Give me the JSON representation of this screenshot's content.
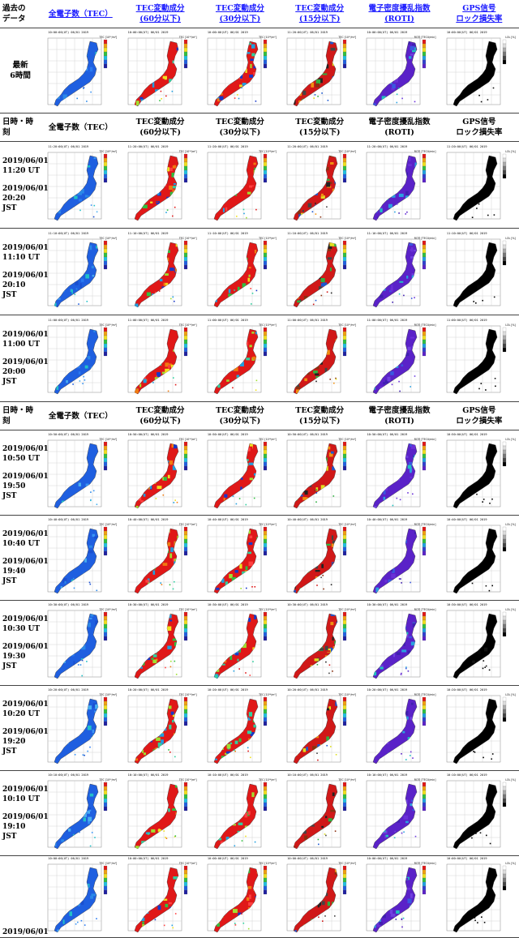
{
  "header": {
    "past_data": "過去の\nデータ",
    "columns": [
      {
        "label": "全電子数（TEC）",
        "link": true
      },
      {
        "label": "TEC変動成分\n(60分以下)",
        "link": true
      },
      {
        "label": "TEC変動成分\n(30分以下)",
        "link": true
      },
      {
        "label": "TEC変動成分\n(15分以下)",
        "link": true
      },
      {
        "label": "電子密度擾乱指数\n(ROTI)",
        "link": true
      },
      {
        "label": "GPS信号\nロック損失率",
        "link": true
      }
    ]
  },
  "latest_label": "最新\n6時間",
  "subheader": {
    "datetime_label": "日時・時\n刻",
    "columns": [
      "全電子数（TEC）",
      "TEC変動成分\n(60分以下)",
      "TEC変動成分\n(30分以下)",
      "TEC変動成分\n(15分以下)",
      "電子密度擾乱指数\n(ROTI)",
      "GPS信号\nロック損失率"
    ]
  },
  "units": [
    "TEC [10¹⁶/m²]",
    "TEC [10¹⁶/m²]",
    "TEC [10¹⁶/m²]",
    "TEC [10¹⁶/m²]",
    "ROTI [TECU/min]",
    "LOL [%]"
  ],
  "latest_titles": [
    "10:00:00(UT) 06/01 2019",
    "10:00:00(UT) 06/01 2019",
    "10:00:00(UT) 06/01 2019",
    "11:20:00(UT) 06/01 2019",
    "10:00:00(UT) 06/01 2019",
    "10:00:00(UT) 06/01 2019"
  ],
  "rows_a": [
    {
      "utc": "2019/06/01\n11:20 UT",
      "jst": "2019/06/01\n20:20\nJST",
      "title": "11:20:00(UT) 06/01 2019"
    },
    {
      "utc": "2019/06/01\n11:10 UT",
      "jst": "2019/06/01\n20:10\nJST",
      "title": "11:10:00(UT) 06/01 2019"
    },
    {
      "utc": "2019/06/01\n11:00 UT",
      "jst": "2019/06/01\n20:00\nJST",
      "title": "11:00:00(UT) 06/01 2019"
    }
  ],
  "rows_b": [
    {
      "utc": "2019/06/01\n10:50 UT",
      "jst": "2019/06/01\n19:50\nJST",
      "title": "10:50:00(UT) 06/01 2019"
    },
    {
      "utc": "2019/06/01\n10:40 UT",
      "jst": "2019/06/01\n19:40\nJST",
      "title": "10:40:00(UT) 06/01 2019"
    },
    {
      "utc": "2019/06/01\n10:30 UT",
      "jst": "2019/06/01\n19:30\nJST",
      "title": "10:30:00(UT) 06/01 2019"
    },
    {
      "utc": "2019/06/01\n10:20 UT",
      "jst": "2019/06/01\n19:20\nJST",
      "title": "10:20:00(UT) 06/01 2019"
    },
    {
      "utc": "2019/06/01\n10:10 UT",
      "jst": "2019/06/01\n19:10\nJST",
      "title": "10:10:00(UT) 06/01 2019"
    }
  ],
  "cut_row": {
    "utc": "2019/06/01",
    "title": "10:00:00(UT) 06/01 2019"
  },
  "colors": {
    "link": "#1a1aff",
    "tec_bg": "#1f6fe0",
    "roti_bg": "#5a22c8",
    "lol_bg": "#000000"
  }
}
